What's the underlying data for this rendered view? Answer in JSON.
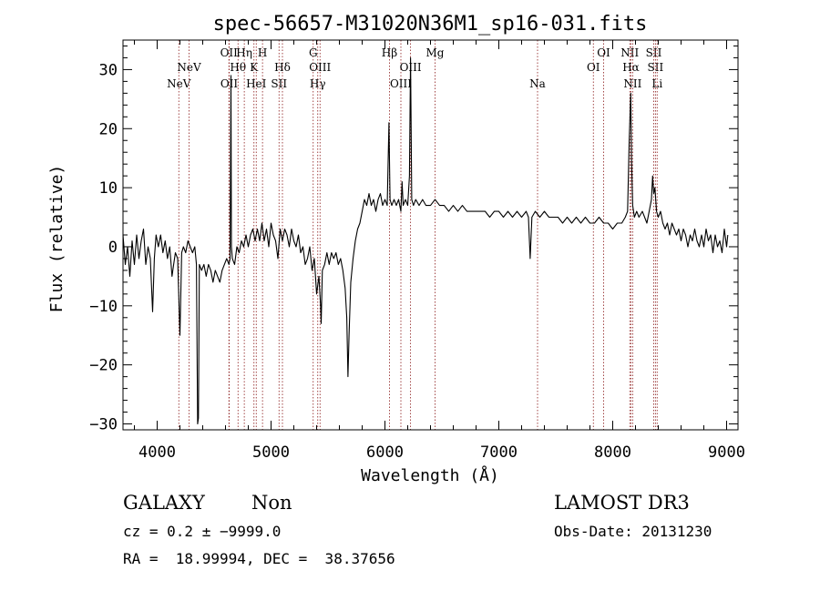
{
  "chart_data": {
    "type": "line",
    "title": "spec-56657-M31020N36M1_sp16-031.fits",
    "xlabel": "Wavelength (Å)",
    "ylabel": "Flux (relative)",
    "xlim": [
      3700,
      9100
    ],
    "ylim": [
      -31,
      35
    ],
    "x_ticks": [
      4000,
      5000,
      6000,
      7000,
      8000,
      9000
    ],
    "y_ticks": [
      -30,
      -20,
      -10,
      0,
      10,
      20,
      30
    ],
    "x_tick_labels": [
      "4000",
      "5000",
      "6000",
      "7000",
      "8000",
      "9000"
    ],
    "y_tick_labels": [
      "−30",
      "−20",
      "−10",
      "0",
      "10",
      "20",
      "30"
    ],
    "line_color": "#000000",
    "marker_color": "#8b1a1a",
    "series": [
      {
        "points": [
          [
            3700,
            2
          ],
          [
            3720,
            -3
          ],
          [
            3740,
            0
          ],
          [
            3760,
            -5
          ],
          [
            3780,
            1
          ],
          [
            3800,
            -3
          ],
          [
            3820,
            2
          ],
          [
            3840,
            -2
          ],
          [
            3860,
            1
          ],
          [
            3880,
            3
          ],
          [
            3900,
            -3
          ],
          [
            3920,
            0
          ],
          [
            3940,
            -2
          ],
          [
            3960,
            -11
          ],
          [
            3975,
            -2
          ],
          [
            3990,
            2
          ],
          [
            4010,
            0
          ],
          [
            4030,
            2
          ],
          [
            4050,
            -1
          ],
          [
            4070,
            1
          ],
          [
            4090,
            -2
          ],
          [
            4110,
            0
          ],
          [
            4130,
            -5
          ],
          [
            4145,
            -3
          ],
          [
            4160,
            -1
          ],
          [
            4180,
            -2
          ],
          [
            4200,
            -15
          ],
          [
            4215,
            -1
          ],
          [
            4230,
            0
          ],
          [
            4250,
            -1
          ],
          [
            4270,
            1
          ],
          [
            4290,
            0
          ],
          [
            4310,
            -1
          ],
          [
            4330,
            0
          ],
          [
            4345,
            -3
          ],
          [
            4355,
            -30
          ],
          [
            4362,
            -29
          ],
          [
            4370,
            -3
          ],
          [
            4390,
            -4
          ],
          [
            4410,
            -3
          ],
          [
            4430,
            -5
          ],
          [
            4450,
            -3
          ],
          [
            4470,
            -4
          ],
          [
            4490,
            -6
          ],
          [
            4510,
            -4
          ],
          [
            4530,
            -5
          ],
          [
            4550,
            -6
          ],
          [
            4570,
            -4
          ],
          [
            4590,
            -3
          ],
          [
            4610,
            -2
          ],
          [
            4630,
            -3
          ],
          [
            4640,
            -2
          ],
          [
            4648,
            29
          ],
          [
            4652,
            0
          ],
          [
            4660,
            -2
          ],
          [
            4680,
            -3
          ],
          [
            4700,
            0
          ],
          [
            4720,
            -1
          ],
          [
            4740,
            1
          ],
          [
            4760,
            0
          ],
          [
            4780,
            2
          ],
          [
            4800,
            0
          ],
          [
            4820,
            2
          ],
          [
            4840,
            3
          ],
          [
            4860,
            1
          ],
          [
            4880,
            3
          ],
          [
            4900,
            1
          ],
          [
            4920,
            4
          ],
          [
            4940,
            1
          ],
          [
            4960,
            3
          ],
          [
            4980,
            0
          ],
          [
            5000,
            4
          ],
          [
            5020,
            2
          ],
          [
            5040,
            1
          ],
          [
            5060,
            -2
          ],
          [
            5080,
            3
          ],
          [
            5100,
            1
          ],
          [
            5120,
            3
          ],
          [
            5140,
            2
          ],
          [
            5160,
            0
          ],
          [
            5180,
            3
          ],
          [
            5200,
            1
          ],
          [
            5220,
            0
          ],
          [
            5240,
            2
          ],
          [
            5260,
            -1
          ],
          [
            5280,
            0
          ],
          [
            5300,
            -3
          ],
          [
            5320,
            -2
          ],
          [
            5340,
            0
          ],
          [
            5360,
            -4
          ],
          [
            5380,
            -2
          ],
          [
            5400,
            -8
          ],
          [
            5420,
            -5
          ],
          [
            5435,
            -10
          ],
          [
            5440,
            -13
          ],
          [
            5450,
            -4
          ],
          [
            5470,
            -3
          ],
          [
            5490,
            -1
          ],
          [
            5510,
            -3
          ],
          [
            5530,
            -1
          ],
          [
            5550,
            -2
          ],
          [
            5570,
            -1
          ],
          [
            5590,
            -3
          ],
          [
            5610,
            -2
          ],
          [
            5630,
            -4
          ],
          [
            5650,
            -7
          ],
          [
            5665,
            -12
          ],
          [
            5675,
            -22
          ],
          [
            5685,
            -15
          ],
          [
            5700,
            -6
          ],
          [
            5720,
            -2
          ],
          [
            5740,
            1
          ],
          [
            5760,
            3
          ],
          [
            5780,
            4
          ],
          [
            5800,
            6
          ],
          [
            5820,
            8
          ],
          [
            5840,
            7
          ],
          [
            5860,
            9
          ],
          [
            5880,
            7
          ],
          [
            5900,
            8
          ],
          [
            5920,
            6
          ],
          [
            5940,
            8
          ],
          [
            5960,
            9
          ],
          [
            5980,
            7
          ],
          [
            6000,
            8
          ],
          [
            6020,
            7
          ],
          [
            6035,
            21
          ],
          [
            6045,
            8
          ],
          [
            6060,
            7
          ],
          [
            6080,
            8
          ],
          [
            6100,
            7
          ],
          [
            6120,
            8
          ],
          [
            6140,
            6
          ],
          [
            6150,
            11
          ],
          [
            6160,
            7
          ],
          [
            6180,
            8
          ],
          [
            6200,
            7
          ],
          [
            6215,
            12
          ],
          [
            6225,
            32
          ],
          [
            6235,
            8
          ],
          [
            6250,
            7
          ],
          [
            6270,
            8
          ],
          [
            6300,
            7
          ],
          [
            6330,
            8
          ],
          [
            6360,
            7
          ],
          [
            6400,
            7
          ],
          [
            6440,
            8
          ],
          [
            6480,
            7
          ],
          [
            6520,
            7
          ],
          [
            6560,
            6
          ],
          [
            6600,
            7
          ],
          [
            6640,
            6
          ],
          [
            6680,
            7
          ],
          [
            6720,
            6
          ],
          [
            6760,
            6
          ],
          [
            6800,
            6
          ],
          [
            6840,
            6
          ],
          [
            6880,
            6
          ],
          [
            6920,
            5
          ],
          [
            6960,
            6
          ],
          [
            7000,
            6
          ],
          [
            7040,
            5
          ],
          [
            7080,
            6
          ],
          [
            7120,
            5
          ],
          [
            7160,
            6
          ],
          [
            7200,
            5
          ],
          [
            7240,
            6
          ],
          [
            7260,
            5
          ],
          [
            7275,
            -2
          ],
          [
            7290,
            5
          ],
          [
            7320,
            6
          ],
          [
            7360,
            5
          ],
          [
            7400,
            6
          ],
          [
            7440,
            5
          ],
          [
            7480,
            5
          ],
          [
            7520,
            5
          ],
          [
            7560,
            4
          ],
          [
            7600,
            5
          ],
          [
            7640,
            4
          ],
          [
            7680,
            5
          ],
          [
            7720,
            4
          ],
          [
            7760,
            5
          ],
          [
            7800,
            4
          ],
          [
            7840,
            4
          ],
          [
            7880,
            5
          ],
          [
            7920,
            4
          ],
          [
            7960,
            4
          ],
          [
            8000,
            3
          ],
          [
            8040,
            4
          ],
          [
            8080,
            4
          ],
          [
            8110,
            5
          ],
          [
            8130,
            6
          ],
          [
            8145,
            18
          ],
          [
            8158,
            26
          ],
          [
            8165,
            15
          ],
          [
            8175,
            7
          ],
          [
            8190,
            5
          ],
          [
            8210,
            6
          ],
          [
            8230,
            5
          ],
          [
            8260,
            6
          ],
          [
            8280,
            5
          ],
          [
            8300,
            4
          ],
          [
            8320,
            6
          ],
          [
            8340,
            8
          ],
          [
            8350,
            12
          ],
          [
            8360,
            9
          ],
          [
            8370,
            10
          ],
          [
            8385,
            6
          ],
          [
            8400,
            5
          ],
          [
            8420,
            6
          ],
          [
            8440,
            4
          ],
          [
            8460,
            3
          ],
          [
            8480,
            4
          ],
          [
            8500,
            2
          ],
          [
            8520,
            4
          ],
          [
            8540,
            3
          ],
          [
            8560,
            2
          ],
          [
            8580,
            3
          ],
          [
            8600,
            1
          ],
          [
            8620,
            3
          ],
          [
            8640,
            2
          ],
          [
            8660,
            0
          ],
          [
            8680,
            2
          ],
          [
            8700,
            1
          ],
          [
            8720,
            3
          ],
          [
            8740,
            1
          ],
          [
            8760,
            0
          ],
          [
            8780,
            2
          ],
          [
            8800,
            0
          ],
          [
            8820,
            3
          ],
          [
            8840,
            1
          ],
          [
            8860,
            2
          ],
          [
            8880,
            -1
          ],
          [
            8900,
            2
          ],
          [
            8920,
            0
          ],
          [
            8940,
            1
          ],
          [
            8960,
            -1
          ],
          [
            8980,
            3
          ],
          [
            9000,
            0
          ],
          [
            9010,
            2
          ]
        ]
      }
    ],
    "line_markers": [
      {
        "x": 4190,
        "label": "NeV",
        "row": 2
      },
      {
        "x": 4280,
        "label": "NeV",
        "row": 1
      },
      {
        "x": 4630,
        "label": "OII",
        "row": 0
      },
      {
        "x": 4632,
        "label": "OII",
        "row": 2
      },
      {
        "x": 4710,
        "label": "Hθ",
        "row": 1
      },
      {
        "x": 4765,
        "label": "Hη",
        "row": 0
      },
      {
        "x": 4850,
        "label": "K",
        "row": 1
      },
      {
        "x": 4870,
        "label": "HeI",
        "row": 2
      },
      {
        "x": 4925,
        "label": "H",
        "row": 0
      },
      {
        "x": 5070,
        "label": "SII",
        "row": 2
      },
      {
        "x": 5100,
        "label": "Hδ",
        "row": 1
      },
      {
        "x": 5370,
        "label": "G",
        "row": 0
      },
      {
        "x": 5410,
        "label": "Hγ",
        "row": 2
      },
      {
        "x": 5430,
        "label": "OIII",
        "row": 1
      },
      {
        "x": 6040,
        "label": "Hβ",
        "row": 0
      },
      {
        "x": 6140,
        "label": "OIII",
        "row": 2
      },
      {
        "x": 6225,
        "label": "OIII",
        "row": 1
      },
      {
        "x": 6440,
        "label": "Mg",
        "row": 0
      },
      {
        "x": 7340,
        "label": "Na",
        "row": 2
      },
      {
        "x": 7830,
        "label": "OI",
        "row": 1
      },
      {
        "x": 7920,
        "label": "OI",
        "row": 0
      },
      {
        "x": 8150,
        "label": "NII",
        "row": 0
      },
      {
        "x": 8160,
        "label": "Hα",
        "row": 1
      },
      {
        "x": 8175,
        "label": "NII",
        "row": 2
      },
      {
        "x": 8360,
        "label": "SII",
        "row": 0
      },
      {
        "x": 8375,
        "label": "SII",
        "row": 1
      },
      {
        "x": 8390,
        "label": "Li",
        "row": 2
      }
    ]
  },
  "info": {
    "class": "GALAXY",
    "subclass": "Non",
    "survey": "LAMOST DR3",
    "cz": "cz = 0.2 ± −9999.0",
    "obs_date": "Obs-Date: 20131230",
    "coords": "RA =  18.99994, DEC =  38.37656"
  }
}
